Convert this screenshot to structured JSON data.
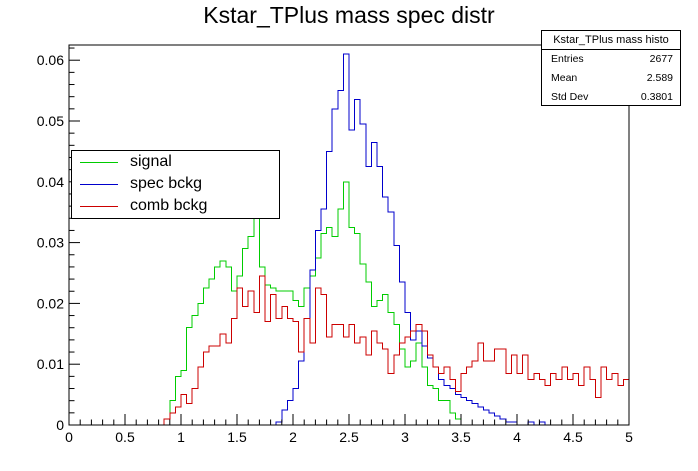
{
  "chart_data": {
    "type": "histogram",
    "title": "Kstar_TPlus mass spec distr",
    "xlim": [
      0,
      5
    ],
    "ylim": [
      0,
      0.0625
    ],
    "x_ticks": [
      "0",
      "0.5",
      "1",
      "1.5",
      "2",
      "2.5",
      "3",
      "3.5",
      "4",
      "4.5",
      "5"
    ],
    "y_ticks": [
      "0",
      "0.01",
      "0.02",
      "0.03",
      "0.04",
      "0.05",
      "0.06"
    ],
    "bin_width": 0.05,
    "bin_start": 0,
    "stats_box": {
      "title": "Kstar_TPlus mass histo",
      "rows": [
        {
          "label": "Entries",
          "value": "2677"
        },
        {
          "label": "Mean",
          "value": "2.589"
        },
        {
          "label": "Std Dev",
          "value": "0.3801"
        }
      ]
    },
    "legend_position": "left-middle",
    "series": [
      {
        "name": "signal",
        "color": "#00cc00",
        "values": [
          0,
          0,
          0,
          0,
          0,
          0,
          0,
          0,
          0,
          0,
          0,
          0,
          0,
          0,
          0,
          0,
          0,
          0.001,
          0.004,
          0.008,
          0.009,
          0.016,
          0.018,
          0.02,
          0.0225,
          0.024,
          0.026,
          0.027,
          0.026,
          0.022,
          0.0245,
          0.029,
          0.031,
          0.034,
          0.026,
          0.023,
          0.0225,
          0.022,
          0.022,
          0.022,
          0.0205,
          0.0195,
          0.0225,
          0.0245,
          0.0275,
          0.0315,
          0.0325,
          0.031,
          0.0355,
          0.04,
          0.0325,
          0.0315,
          0.0265,
          0.0235,
          0.0195,
          0.0205,
          0.0215,
          0.0185,
          0.0165,
          0.0125,
          0.0095,
          0.0105,
          0.0135,
          0.0095,
          0.0065,
          0.006,
          0.004,
          0.004,
          0.002,
          0.001,
          0,
          0,
          0,
          0,
          0,
          0,
          0,
          0,
          0,
          0,
          0,
          0,
          0,
          0,
          0,
          0,
          0,
          0,
          0,
          0,
          0,
          0,
          0,
          0,
          0,
          0,
          0,
          0,
          0,
          0
        ]
      },
      {
        "name": "spec bckg",
        "color": "#0000cc",
        "values": [
          0,
          0,
          0,
          0,
          0,
          0,
          0,
          0,
          0,
          0,
          0,
          0,
          0,
          0,
          0,
          0,
          0,
          0,
          0,
          0,
          0,
          0,
          0,
          0,
          0,
          0,
          0,
          0,
          0,
          0,
          0,
          0,
          0,
          0,
          0,
          0,
          0,
          0.0005,
          0.0025,
          0.004,
          0.006,
          0.0105,
          0.0175,
          0.0255,
          0.032,
          0.0355,
          0.045,
          0.052,
          0.055,
          0.061,
          0.0485,
          0.0535,
          0.0495,
          0.0425,
          0.0465,
          0.0425,
          0.0375,
          0.035,
          0.0295,
          0.0235,
          0.0185,
          0.014,
          0.0155,
          0.013,
          0.011,
          0.0095,
          0.0075,
          0.0065,
          0.006,
          0.005,
          0.0045,
          0.004,
          0.0035,
          0.003,
          0.0025,
          0.002,
          0.0015,
          0.001,
          0.0005,
          0.0005,
          0,
          0,
          0.0005,
          0,
          0.0005,
          0,
          0,
          0,
          0,
          0,
          0,
          0,
          0,
          0,
          0,
          0,
          0,
          0,
          0,
          0
        ]
      },
      {
        "name": "comb bckg",
        "color": "#cc0000",
        "values": [
          0,
          0,
          0,
          0,
          0,
          0,
          0,
          0,
          0,
          0,
          0,
          0,
          0,
          0,
          0,
          0,
          0,
          0.001,
          0.002,
          0.003,
          0.005,
          0.0035,
          0.006,
          0.0095,
          0.012,
          0.013,
          0.013,
          0.015,
          0.0135,
          0.0175,
          0.0225,
          0.0195,
          0.022,
          0.0185,
          0.0245,
          0.017,
          0.0215,
          0.0175,
          0.0195,
          0.0175,
          0.017,
          0.012,
          0.0175,
          0.0135,
          0.0225,
          0.0215,
          0.0145,
          0.0165,
          0.0165,
          0.0145,
          0.0165,
          0.0135,
          0.0145,
          0.0115,
          0.0155,
          0.0135,
          0.0125,
          0.0085,
          0.0115,
          0.0135,
          0.0145,
          0.0155,
          0.0165,
          0.0155,
          0.0115,
          0.0095,
          0.0085,
          0.0095,
          0.0075,
          0.0055,
          0.0085,
          0.0095,
          0.0105,
          0.0135,
          0.0105,
          0.0105,
          0.0125,
          0.0125,
          0.0085,
          0.0115,
          0.0085,
          0.0115,
          0.0075,
          0.0085,
          0.0075,
          0.0065,
          0.0085,
          0.0075,
          0.0095,
          0.0075,
          0.0085,
          0.0065,
          0.0095,
          0.0075,
          0.0045,
          0.0095,
          0.0075,
          0.0085,
          0.0065,
          0.0075
        ]
      }
    ]
  }
}
